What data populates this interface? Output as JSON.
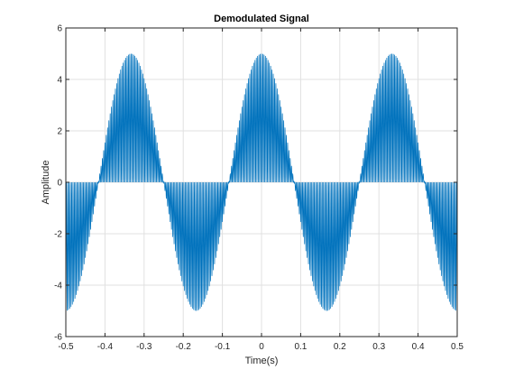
{
  "chart_data": {
    "type": "line",
    "title": "Demodulated Signal",
    "xlabel": "Time(s)",
    "ylabel": "Amplitude",
    "xlim": [
      -0.5,
      0.5
    ],
    "ylim": [
      -6,
      6
    ],
    "xticks": [
      "-0.5",
      "-0.4",
      "-0.3",
      "-0.2",
      "-0.1",
      "0",
      "0.1",
      "0.2",
      "0.3",
      "0.4",
      "0.5"
    ],
    "yticks": [
      "-6",
      "-4",
      "-2",
      "0",
      "2",
      "4",
      "6"
    ],
    "grid": true,
    "series": [
      {
        "color": "#0072BD",
        "description_values": {
          "envelope": "5*cos(2*pi*3*t)",
          "carrier_frequency_hz": 150,
          "form": "envelope * |cos(2*pi*fc*t)| style full-wave oscillation filling between 0 and envelope"
        },
        "envelope_x": [
          -0.5,
          -0.4167,
          -0.3333,
          -0.25,
          -0.1667,
          -0.0833,
          0,
          0.0833,
          0.1667,
          0.25,
          0.3333,
          0.4167,
          0.5
        ],
        "envelope_y": [
          -5,
          0,
          5,
          0,
          -5,
          0,
          5,
          0,
          -5,
          0,
          5,
          0,
          -5
        ]
      }
    ]
  }
}
